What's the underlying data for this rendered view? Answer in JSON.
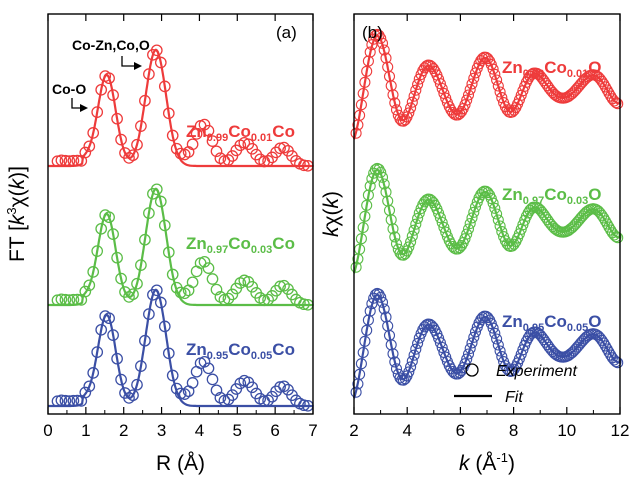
{
  "chart_data": [
    {
      "type": "line",
      "panel_label": "(a)",
      "xlabel": "R (Å)",
      "ylabel_parts": [
        "FT [",
        "k",
        "3",
        "χ(",
        "k",
        ")]"
      ],
      "xlim": [
        0,
        7
      ],
      "xticks": [
        0,
        1,
        2,
        3,
        4,
        5,
        6,
        7
      ],
      "y_ticks_shown": false,
      "annotations": [
        {
          "text": "Co-O",
          "x": 1.5
        },
        {
          "text": "Co-Zn,Co,O",
          "x": 2.75
        }
      ],
      "series": [
        {
          "name_parts": [
            "Zn",
            "0.99",
            "Co",
            "0.01",
            "Co"
          ],
          "color": "#ee3b3b",
          "offset": 2.0
        },
        {
          "name_parts": [
            "Zn",
            "0.97",
            "Co",
            "0.03",
            "Co"
          ],
          "color": "#5bbd47",
          "offset": 1.0
        },
        {
          "name_parts": [
            "Zn",
            "0.95",
            "Co",
            "0.05",
            "Co"
          ],
          "color": "#3b4fa5",
          "offset": 0.0
        }
      ]
    },
    {
      "type": "line",
      "panel_label": "(b)",
      "xlabel_parts": [
        "k",
        " (Å",
        "-1",
        ")"
      ],
      "ylabel_parts": [
        "k",
        "χ(",
        "k",
        ")"
      ],
      "xlim": [
        2,
        12
      ],
      "xticks": [
        2,
        4,
        6,
        8,
        10,
        12
      ],
      "y_ticks_shown": false,
      "legend": [
        {
          "label": "Experiment",
          "marker": "open-circle"
        },
        {
          "label": "Fit",
          "marker": "line"
        }
      ],
      "legend_position": "bottom-right",
      "series": [
        {
          "name_parts": [
            "Zn",
            "0.99",
            "Co",
            "0.01",
            "O"
          ],
          "color": "#ee3b3b",
          "offset": 2.0
        },
        {
          "name_parts": [
            "Zn",
            "0.97",
            "Co",
            "0.03",
            "O"
          ],
          "color": "#5bbd47",
          "offset": 1.0
        },
        {
          "name_parts": [
            "Zn",
            "0.95",
            "Co",
            "0.05",
            "O"
          ],
          "color": "#3b4fa5",
          "offset": 0.0
        }
      ]
    }
  ]
}
